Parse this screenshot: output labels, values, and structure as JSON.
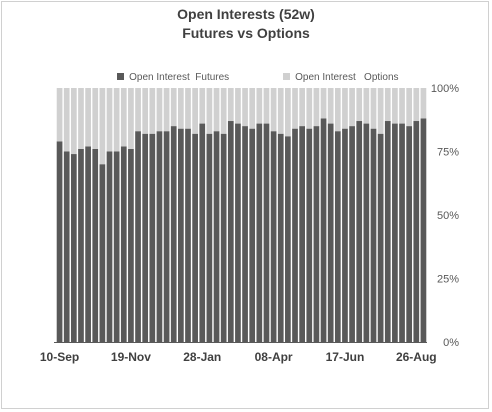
{
  "chart_data": {
    "type": "bar",
    "stacked": "percent",
    "title": "Open Interests (52w)",
    "subtitle": "Futures vs Options",
    "xlabel": "",
    "ylabel": "",
    "ylim": [
      0,
      100
    ],
    "yticks": [
      "0%",
      "25%",
      "50%",
      "75%",
      "100%"
    ],
    "yaxis_position": "right",
    "gridlines": false,
    "legend_position": "top",
    "x_tick_labels": [
      "10-Sep",
      "19-Nov",
      "28-Jan",
      "08-Apr",
      "17-Jun",
      "26-Aug"
    ],
    "x_tick_positions": [
      0,
      10,
      20,
      30,
      40,
      50
    ],
    "series": [
      {
        "name": "Open Interest  Futures",
        "color": "#595959",
        "values": [
          79,
          75,
          74,
          76,
          77,
          76,
          70,
          75,
          75,
          77,
          76,
          83,
          82,
          82,
          83,
          83,
          85,
          84,
          84,
          82,
          86,
          82,
          83,
          82,
          87,
          86,
          85,
          84,
          86,
          86,
          83,
          82,
          81,
          84,
          85,
          84,
          85,
          88,
          86,
          83,
          84,
          85,
          87,
          86,
          84,
          82,
          87,
          86,
          86,
          85,
          87,
          88
        ]
      },
      {
        "name": "Open Interest   Options",
        "color": "#d0d0d0",
        "values": [
          21,
          25,
          26,
          24,
          23,
          24,
          30,
          25,
          25,
          23,
          24,
          17,
          18,
          18,
          17,
          17,
          15,
          16,
          16,
          18,
          14,
          18,
          17,
          18,
          13,
          14,
          15,
          16,
          14,
          14,
          17,
          18,
          19,
          16,
          15,
          16,
          15,
          12,
          14,
          17,
          16,
          15,
          13,
          14,
          16,
          18,
          13,
          14,
          14,
          15,
          13,
          12
        ]
      }
    ]
  }
}
